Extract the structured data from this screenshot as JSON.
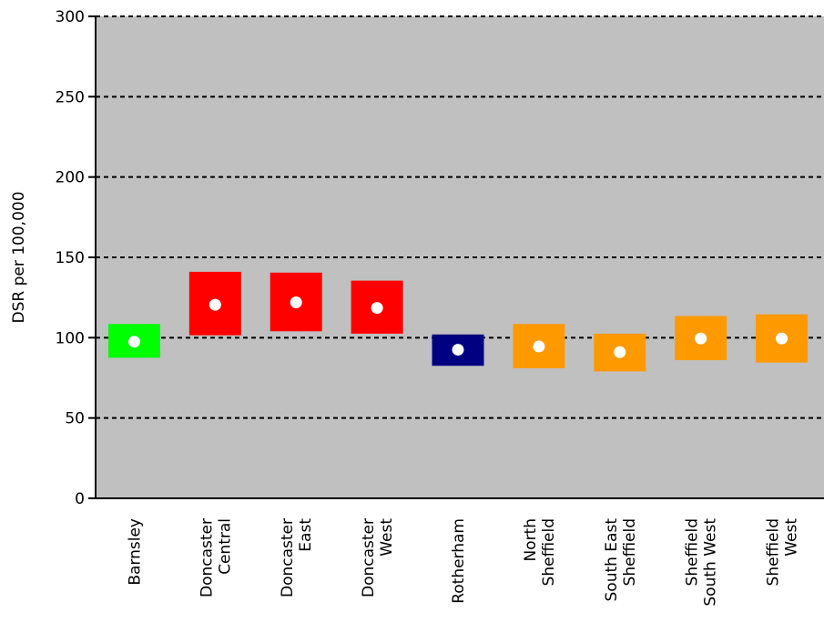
{
  "chart_data": {
    "type": "bar",
    "ylabel": "DSR per 100,000",
    "ylim": [
      0,
      300
    ],
    "yticks": [
      0,
      50,
      100,
      150,
      200,
      250,
      300
    ],
    "grid": true,
    "plot_background": "#c0c0c0",
    "categories": [
      {
        "lines": [
          "Barnsley"
        ]
      },
      {
        "lines": [
          "Doncaster",
          "Central"
        ]
      },
      {
        "lines": [
          "Doncaster",
          "East"
        ]
      },
      {
        "lines": [
          "Doncaster",
          "West"
        ]
      },
      {
        "lines": [
          "Rotherham"
        ]
      },
      {
        "lines": [
          "North",
          "Sheffield"
        ]
      },
      {
        "lines": [
          "South East",
          "Sheffield"
        ]
      },
      {
        "lines": [
          "Sheffield",
          "South West"
        ]
      },
      {
        "lines": [
          "Sheffield",
          "West"
        ]
      }
    ],
    "values": [
      97.5,
      120.5,
      122,
      118.5,
      92.5,
      94.5,
      91,
      99.5,
      99.5
    ],
    "lower": [
      87.5,
      101.5,
      104,
      102.5,
      82.5,
      81,
      79,
      86,
      84.5
    ],
    "upper": [
      108.5,
      141,
      140.5,
      135.5,
      102,
      108.5,
      102.5,
      113.5,
      114.5
    ],
    "colors": [
      "#00ff00",
      "#ff0000",
      "#ff0000",
      "#ff0000",
      "#000080",
      "#ff9900",
      "#ff9900",
      "#ff9900",
      "#ff9900"
    ],
    "point_color": "#ffffff"
  }
}
